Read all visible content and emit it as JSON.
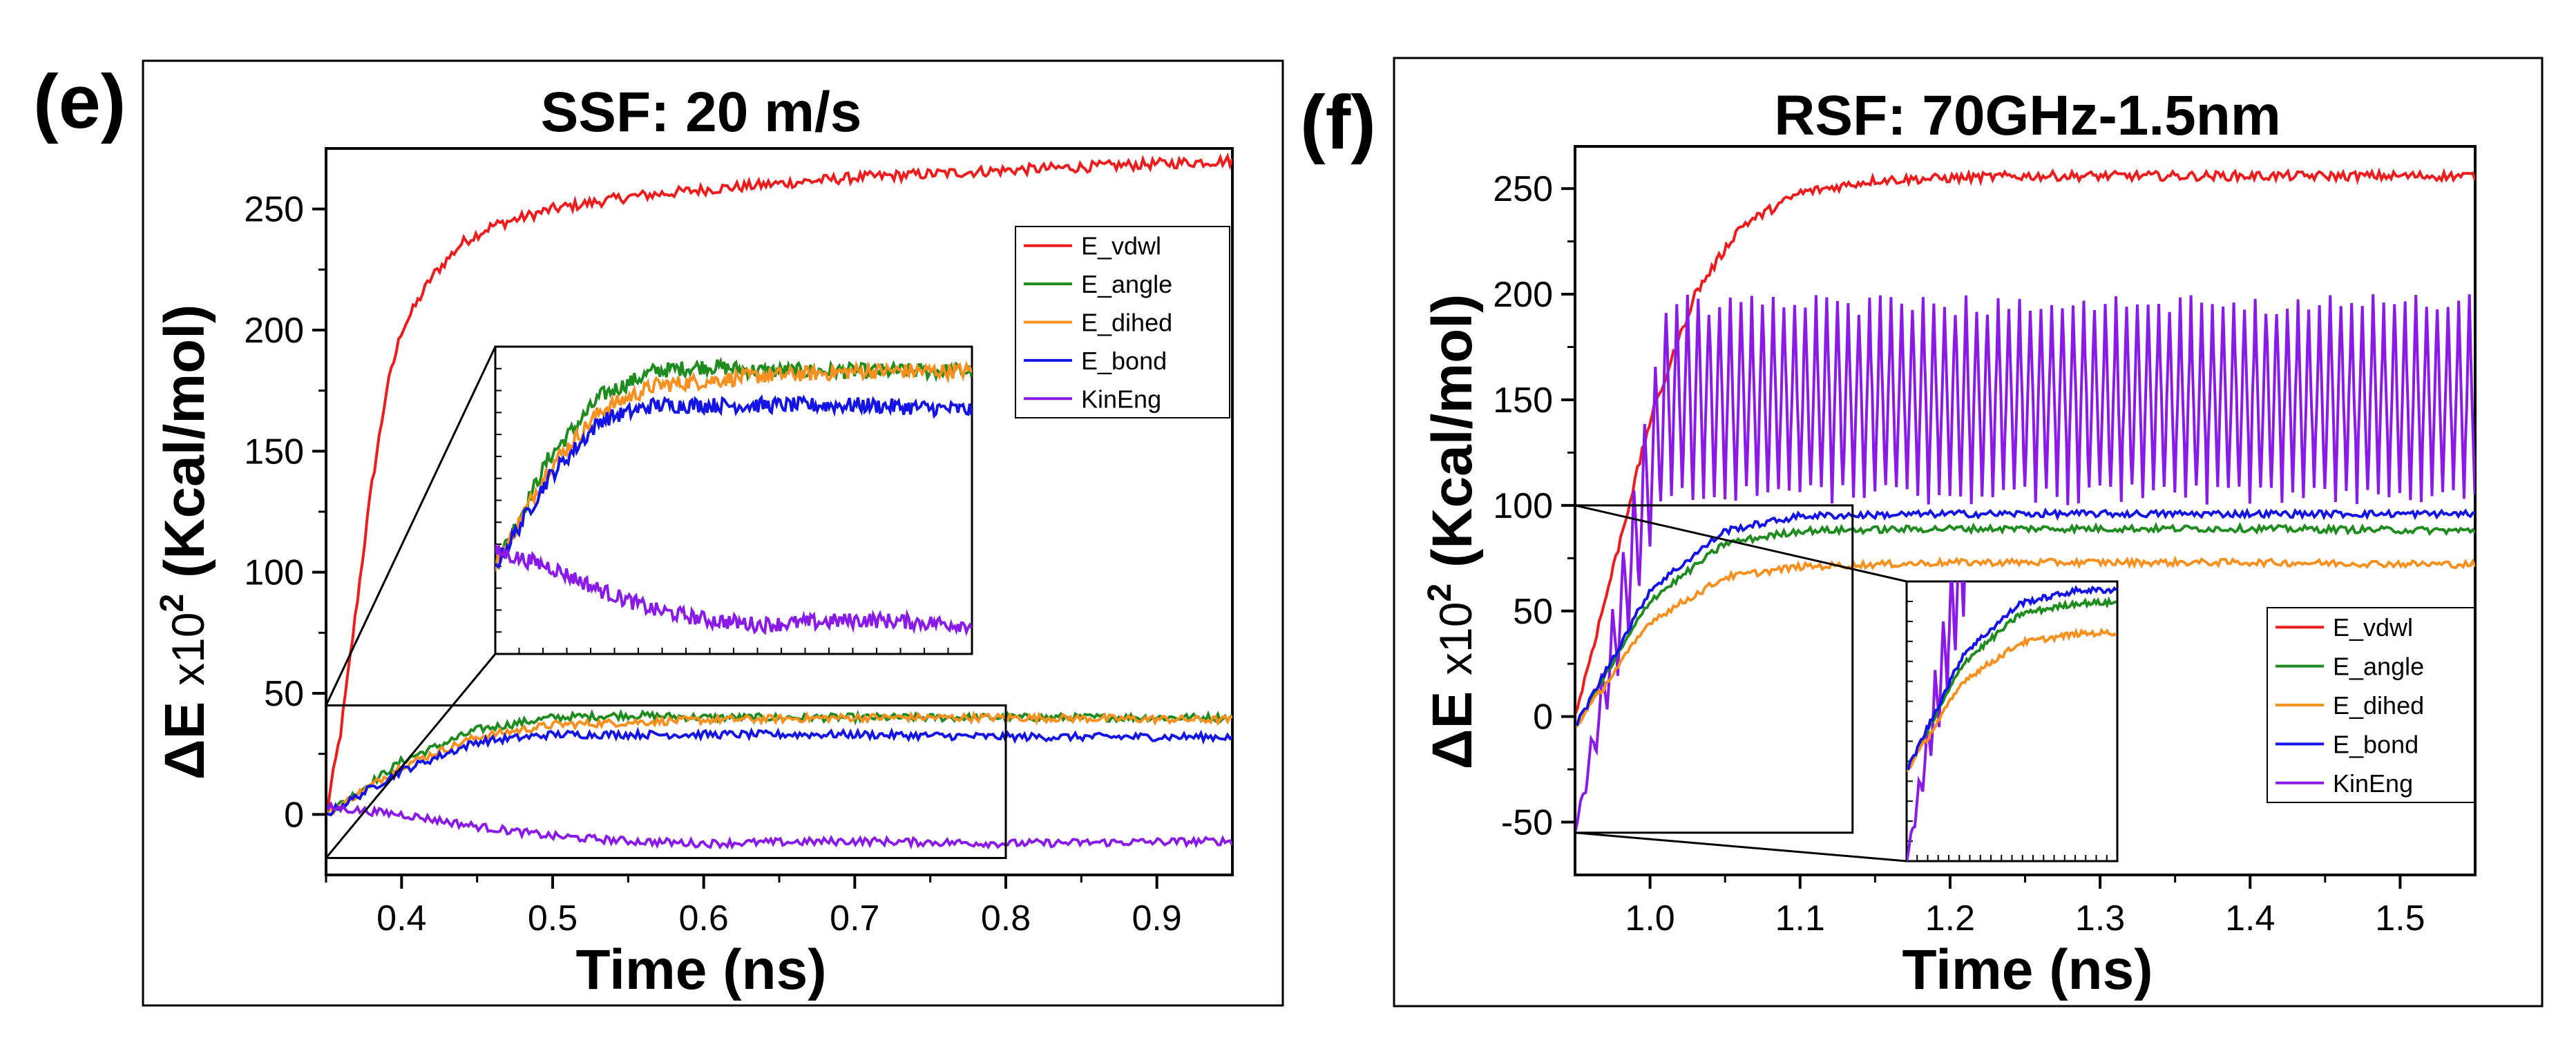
{
  "figure": {
    "panels": [
      "e",
      "f"
    ]
  },
  "colors": {
    "E_vdwl": "#ee1c1c",
    "E_angle": "#1f8c1f",
    "E_dihed": "#f7901e",
    "E_bond": "#1414e6",
    "KinEng": "#8a1ae8"
  },
  "chart_data": [
    {
      "panel_label": "(e)",
      "type": "line",
      "title": "SSF: 20 m/s",
      "xlabel": "Time (ns)",
      "ylabel_main": "ΔE ",
      "ylabel_x": "x10",
      "ylabel_exp": "2",
      "ylabel_unit": " (Kcal/mol)",
      "xlim": [
        0.35,
        0.95
      ],
      "ylim": [
        -25,
        275
      ],
      "xticks": [
        0.4,
        0.5,
        0.6,
        0.7,
        0.8,
        0.9
      ],
      "xtick_labels": [
        "0.4",
        "0.5",
        "0.6",
        "0.7",
        "0.8",
        "0.9"
      ],
      "yticks": [
        0,
        50,
        100,
        150,
        200,
        250
      ],
      "ytick_labels": [
        "0",
        "50",
        "100",
        "150",
        "200",
        "250"
      ],
      "legend": [
        "E_vdwl",
        "E_angle",
        "E_dihed",
        "E_bond",
        "KinEng"
      ],
      "legend_position": "upper-right",
      "series": [
        {
          "name": "E_vdwl",
          "x": [
            0.35,
            0.36,
            0.37,
            0.38,
            0.39,
            0.4,
            0.42,
            0.44,
            0.46,
            0.5,
            0.55,
            0.6,
            0.7,
            0.8,
            0.95
          ],
          "values": [
            0,
            35,
            85,
            135,
            175,
            200,
            222,
            236,
            243,
            250,
            255,
            258,
            263,
            266,
            270
          ]
        },
        {
          "name": "E_angle",
          "x": [
            0.35,
            0.4,
            0.45,
            0.5,
            0.55,
            0.6,
            0.7,
            0.8,
            0.95
          ],
          "values": [
            0,
            22,
            35,
            40,
            41,
            40,
            40,
            40,
            40
          ]
        },
        {
          "name": "E_dihed",
          "x": [
            0.35,
            0.4,
            0.45,
            0.5,
            0.55,
            0.6,
            0.7,
            0.8,
            0.95
          ],
          "values": [
            0,
            20,
            32,
            37,
            38,
            39,
            40,
            40,
            39
          ]
        },
        {
          "name": "E_bond",
          "x": [
            0.35,
            0.4,
            0.45,
            0.5,
            0.55,
            0.6,
            0.7,
            0.8,
            0.95
          ],
          "values": [
            0,
            18,
            30,
            33,
            33,
            33,
            33,
            32,
            32
          ]
        },
        {
          "name": "KinEng",
          "x": [
            0.35,
            0.4,
            0.45,
            0.5,
            0.55,
            0.6,
            0.7,
            0.8,
            0.95
          ],
          "values": [
            3,
            0,
            -5,
            -9,
            -11,
            -12,
            -11,
            -12,
            -11
          ]
        }
      ],
      "inset": {
        "zoom_xlim": [
          0.35,
          0.8
        ],
        "zoom_ylim": [
          -18,
          45
        ]
      }
    },
    {
      "panel_label": "(f)",
      "type": "line",
      "title": "RSF: 70GHz-1.5nm",
      "xlabel": "Time (ns)",
      "ylabel_main": "ΔE ",
      "ylabel_x": "x10",
      "ylabel_exp": "2",
      "ylabel_unit": " (Kcal/mol)",
      "xlim": [
        0.95,
        1.55
      ],
      "ylim": [
        -75,
        270
      ],
      "xticks": [
        1.0,
        1.1,
        1.2,
        1.3,
        1.4,
        1.5
      ],
      "xtick_labels": [
        "1.0",
        "1.1",
        "1.2",
        "1.3",
        "1.4",
        "1.5"
      ],
      "yticks": [
        -50,
        0,
        50,
        100,
        150,
        200,
        250
      ],
      "ytick_labels": [
        "-50",
        "0",
        "50",
        "100",
        "150",
        "200",
        "250"
      ],
      "legend": [
        "E_vdwl",
        "E_angle",
        "E_dihed",
        "E_bond",
        "KinEng"
      ],
      "legend_position": "lower-right",
      "series": [
        {
          "name": "E_vdwl",
          "x": [
            0.95,
            0.97,
            1.0,
            1.03,
            1.06,
            1.1,
            1.15,
            1.25,
            1.4,
            1.55
          ],
          "values": [
            0,
            55,
            140,
            200,
            232,
            248,
            254,
            256,
            256,
            256
          ]
        },
        {
          "name": "E_angle",
          "x": [
            0.95,
            1.0,
            1.05,
            1.1,
            1.2,
            1.4,
            1.55
          ],
          "values": [
            -5,
            55,
            82,
            88,
            89,
            89,
            88
          ]
        },
        {
          "name": "E_dihed",
          "x": [
            0.95,
            1.0,
            1.05,
            1.1,
            1.2,
            1.4,
            1.55
          ],
          "values": [
            -5,
            45,
            66,
            71,
            73,
            73,
            72
          ]
        },
        {
          "name": "E_bond",
          "x": [
            0.95,
            1.0,
            1.05,
            1.1,
            1.2,
            1.4,
            1.55
          ],
          "values": [
            -5,
            60,
            88,
            95,
            96,
            96,
            96
          ]
        },
        {
          "name": "KinEng",
          "x_start": 0.95,
          "x_end": 1.55,
          "period": 0.00714,
          "upper": 195,
          "lower": 105,
          "start_value": -55
        }
      ],
      "inset": {
        "zoom_xlim": [
          0.95,
          1.135
        ],
        "zoom_ylim": [
          -55,
          100
        ]
      }
    }
  ]
}
